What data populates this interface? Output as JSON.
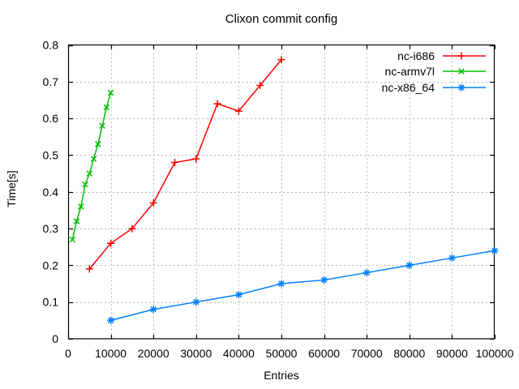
{
  "chart_data": {
    "type": "line",
    "title": "Clixon commit config",
    "xlabel": "Entries",
    "ylabel": "Time[s]",
    "xlim": [
      0,
      100000
    ],
    "ylim": [
      0,
      0.8
    ],
    "grid": true,
    "legend_position": "top-right-inside",
    "xticks": {
      "values": [
        0,
        10000,
        20000,
        30000,
        40000,
        50000,
        60000,
        70000,
        80000,
        90000,
        100000
      ],
      "labels": [
        "0",
        "10000",
        "20000",
        "30000",
        "40000",
        "50000",
        "60000",
        "70000",
        "80000",
        "90000",
        "100000"
      ]
    },
    "yticks": {
      "values": [
        0,
        0.1,
        0.2,
        0.3,
        0.4,
        0.5,
        0.6,
        0.7,
        0.8
      ],
      "labels": [
        "0",
        "0.1",
        "0.2",
        "0.3",
        "0.4",
        "0.5",
        "0.6",
        "0.7",
        "0.8"
      ]
    },
    "series": [
      {
        "name": "nc-i686",
        "color": "#ff0000",
        "marker": "plus",
        "x": [
          5000,
          10000,
          15000,
          20000,
          25000,
          30000,
          35000,
          40000,
          45000,
          50000
        ],
        "y": [
          0.19,
          0.26,
          0.3,
          0.37,
          0.48,
          0.49,
          0.64,
          0.62,
          0.69,
          0.76
        ]
      },
      {
        "name": "nc-armv7l",
        "color": "#00c000",
        "marker": "cross",
        "x": [
          1000,
          2000,
          3000,
          4000,
          5000,
          6000,
          7000,
          8000,
          9000,
          10000
        ],
        "y": [
          0.27,
          0.32,
          0.36,
          0.42,
          0.45,
          0.49,
          0.53,
          0.58,
          0.63,
          0.67
        ]
      },
      {
        "name": "nc-x86_64",
        "color": "#0080ff",
        "marker": "asterisk",
        "x": [
          10000,
          20000,
          30000,
          40000,
          50000,
          60000,
          70000,
          80000,
          90000,
          100000
        ],
        "y": [
          0.05,
          0.08,
          0.1,
          0.12,
          0.15,
          0.16,
          0.18,
          0.2,
          0.22,
          0.24
        ]
      }
    ]
  }
}
